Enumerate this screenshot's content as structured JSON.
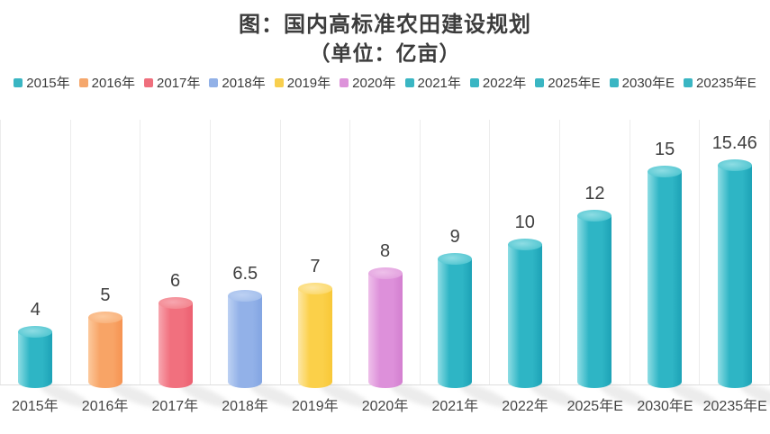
{
  "title": {
    "line1": "图：国内高标准农田建设规划",
    "line2": "（单位：亿亩）"
  },
  "legend": {
    "items": [
      {
        "label": "2015年",
        "color": "#3ab6c3"
      },
      {
        "label": "2016年",
        "color": "#f5a76c"
      },
      {
        "label": "2017年",
        "color": "#ef6f7d"
      },
      {
        "label": "2018年",
        "color": "#92b1e7"
      },
      {
        "label": "2019年",
        "color": "#f8cf4e"
      },
      {
        "label": "2020年",
        "color": "#dd93da"
      },
      {
        "label": "2021年",
        "color": "#3ab6c3"
      },
      {
        "label": "2022年",
        "color": "#3ab6c3"
      },
      {
        "label": "2025年E",
        "color": "#3ab6c3"
      },
      {
        "label": "2030年E",
        "color": "#3ab6c3"
      },
      {
        "label": "20235年E",
        "color": "#3ab6c3"
      }
    ]
  },
  "chart_data": {
    "type": "bar",
    "title": "图：国内高标准农田建设规划",
    "subtitle": "（单位：亿亩）",
    "unit": "亿亩",
    "categories": [
      "2015年",
      "2016年",
      "2017年",
      "2018年",
      "2019年",
      "2020年",
      "2021年",
      "2022年",
      "2025年E",
      "2030年E",
      "20235年E"
    ],
    "values": [
      4,
      5,
      6,
      6.5,
      7,
      8,
      9,
      10,
      12,
      15,
      15.46
    ],
    "value_labels": [
      "4",
      "5",
      "6",
      "6.5",
      "7",
      "8",
      "9",
      "10",
      "12",
      "15",
      "15.46"
    ],
    "ylim": [
      0,
      17
    ],
    "legend_position": "top",
    "bar_style": "3d-cylinder",
    "grid": "vertical-category-separators",
    "bar_colors": [
      {
        "name": "teal",
        "top": "#53c6d1",
        "light": "#8edde4",
        "main": "#2eb5c5",
        "dark": "#1da2b6"
      },
      {
        "name": "orange",
        "top": "#f9b27c",
        "light": "#fcc99d",
        "main": "#f8a466",
        "dark": "#f69352"
      },
      {
        "name": "red",
        "top": "#f3868f",
        "light": "#f7a6af",
        "main": "#f1707e",
        "dark": "#ec5f70"
      },
      {
        "name": "blue",
        "top": "#a4bfec",
        "light": "#bdd1f3",
        "main": "#92b1e8",
        "dark": "#83a5e2"
      },
      {
        "name": "yellow",
        "top": "#fcd96b",
        "light": "#fde7a6",
        "main": "#fbd049",
        "dark": "#f8c737"
      },
      {
        "name": "pink",
        "top": "#e3a2df",
        "light": "#eec0ea",
        "main": "#dd90da",
        "dark": "#d37fd0"
      },
      {
        "name": "teal",
        "top": "#53c6d1",
        "light": "#8edde4",
        "main": "#2eb5c5",
        "dark": "#1da2b6"
      },
      {
        "name": "teal",
        "top": "#53c6d1",
        "light": "#8edde4",
        "main": "#2eb5c5",
        "dark": "#1da2b6"
      },
      {
        "name": "teal",
        "top": "#53c6d1",
        "light": "#8edde4",
        "main": "#2eb5c5",
        "dark": "#1da2b6"
      },
      {
        "name": "teal",
        "top": "#53c6d1",
        "light": "#8edde4",
        "main": "#2eb5c5",
        "dark": "#1da2b6"
      },
      {
        "name": "teal",
        "top": "#53c6d1",
        "light": "#8edde4",
        "main": "#2eb5c5",
        "dark": "#1da2b6"
      }
    ]
  }
}
